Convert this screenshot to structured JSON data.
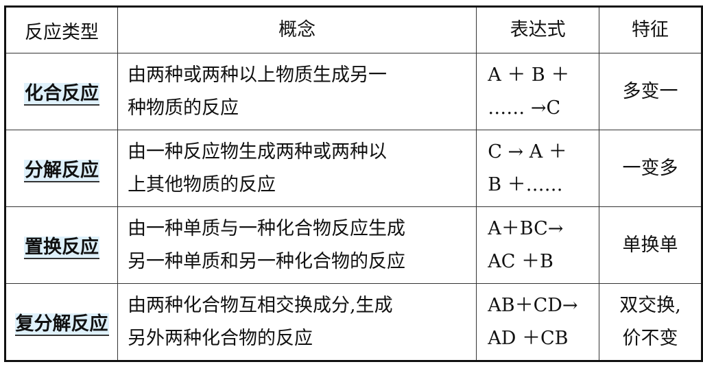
{
  "headers": [
    "反应类型",
    "概念",
    "表达式",
    "特征"
  ],
  "rows": [
    {
      "type": "化合反应",
      "concept": [
        "由两种或两种以上物质生成另一",
        "种物质的反应"
      ],
      "expression": [
        "A ＋ B ＋",
        "…… →C"
      ],
      "feature": [
        "多变一"
      ]
    },
    {
      "type": "分解反应",
      "concept": [
        "由一种反应物生成两种或两种以",
        "上其他物质的反应"
      ],
      "expression": [
        "C → A ＋",
        " B ＋……"
      ],
      "feature": [
        "一变多"
      ]
    },
    {
      "type": "置换反应",
      "concept": [
        "由一种单质与一种化合物反应生成",
        "另一种单质和另一种化合物的反应"
      ],
      "expression": [
        "A＋BC→",
        "AC ＋B"
      ],
      "feature": [
        "单换单"
      ]
    },
    {
      "type": "复分解反应",
      "concept": [
        "由两种化合物互相交换成分,生成",
        "另外两种化合物的反应"
      ],
      "expression": [
        "AB＋CD→",
        "AD ＋CB"
      ],
      "feature": [
        "双交换,",
        "价不变"
      ]
    }
  ],
  "colors": {
    "highlight": "#dff1fb",
    "border": "#111111"
  }
}
